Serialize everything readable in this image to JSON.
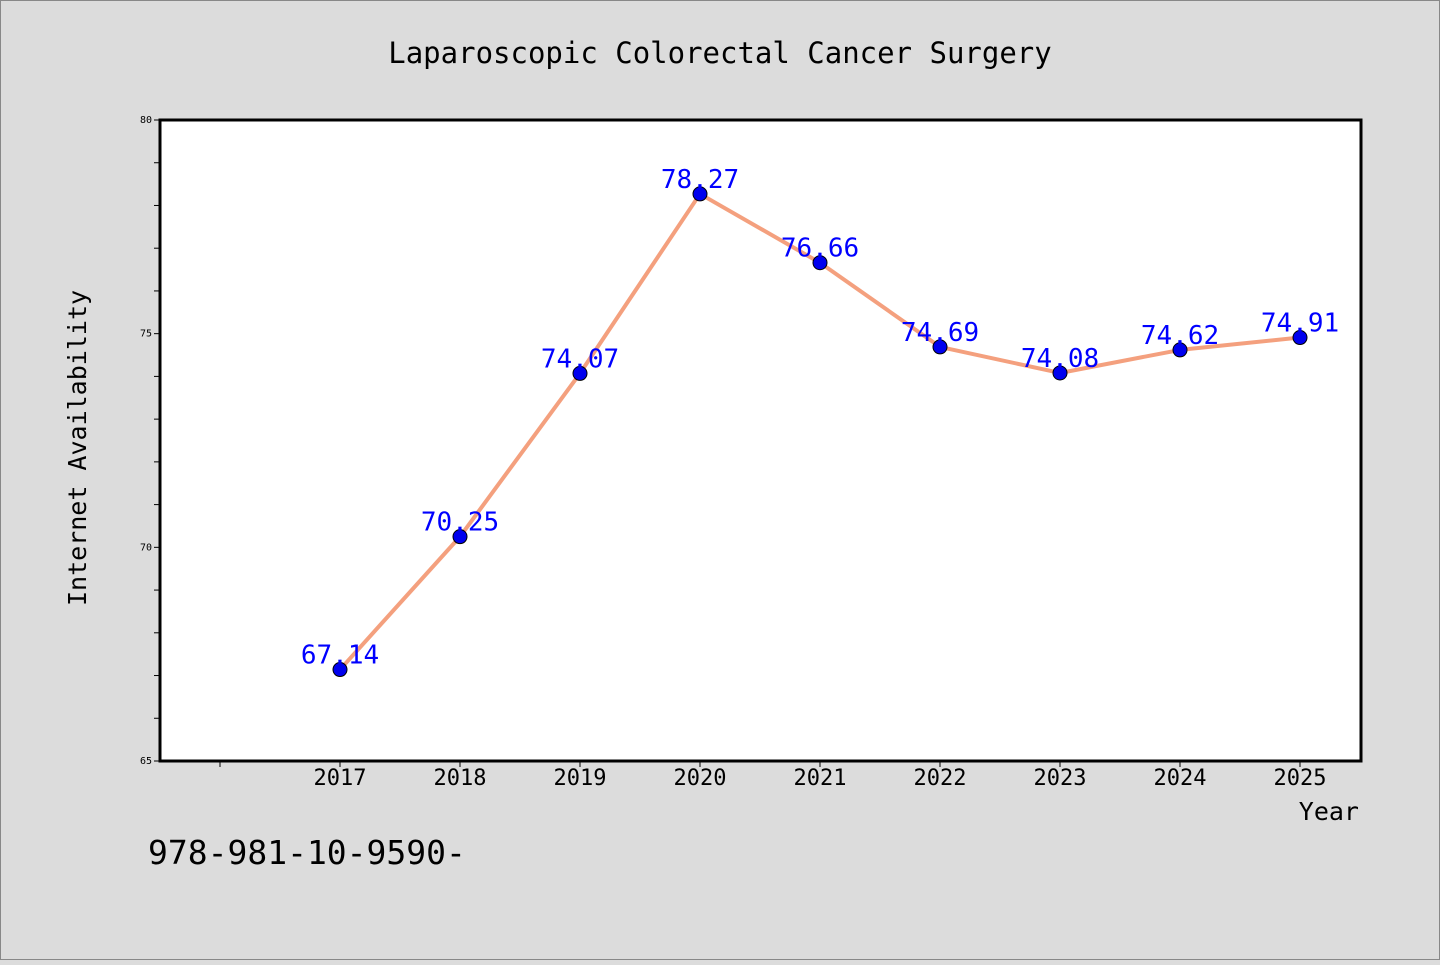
{
  "chart_data": {
    "type": "line",
    "title": "Laparoscopic Colorectal Cancer Surgery",
    "xlabel": "Year",
    "ylabel": "Internet Availability",
    "categories": [
      "2017",
      "2018",
      "2019",
      "2020",
      "2021",
      "2022",
      "2023",
      "2024",
      "2025"
    ],
    "series": [
      {
        "values": [
          67.14,
          70.25,
          74.07,
          78.27,
          76.66,
          74.69,
          74.08,
          74.62,
          74.91
        ],
        "labels": [
          "67.14",
          "70.25",
          "74.07",
          "78.27",
          "76.66",
          "74.69",
          "74.08",
          "74.62",
          "74.91"
        ],
        "line_color": "#f4a07e",
        "marker_color": "#0000ee",
        "label_color": "#0000ff"
      }
    ],
    "ylim": [
      65,
      80
    ],
    "yticks": [
      "65",
      "70",
      "75",
      "80"
    ],
    "grid": false,
    "legend": "none"
  },
  "footer_text": "978-981-10-9590-",
  "colors": {
    "background": "#dcdcdc",
    "plot_background": "#ffffff",
    "axis": "#000000"
  }
}
